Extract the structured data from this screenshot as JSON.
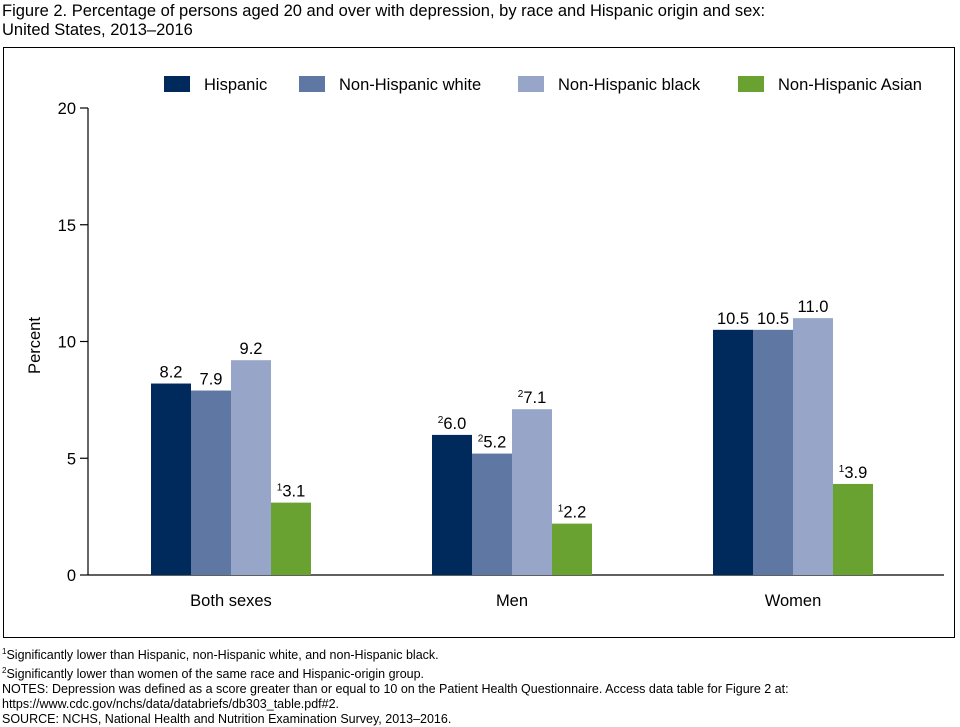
{
  "figure": {
    "title_line1": "Figure 2. Percentage of persons aged 20 and over with depression, by race and Hispanic origin and sex:",
    "title_line2": "United States, 2013–2016"
  },
  "chart_data": {
    "type": "bar",
    "ylabel": "Percent",
    "xlabel": "",
    "ylim": [
      0,
      20
    ],
    "yticks": [
      0,
      5,
      10,
      15,
      20
    ],
    "grid": false,
    "legend_position": "top",
    "categories": [
      "Both sexes",
      "Men",
      "Women"
    ],
    "series": [
      {
        "name": "Hispanic",
        "color": "#002a5c",
        "values": [
          8.2,
          6.0,
          10.5
        ],
        "labels": [
          "8.2",
          "6.0",
          "10.5"
        ],
        "footnotes": [
          "",
          "2",
          ""
        ]
      },
      {
        "name": "Non-Hispanic white",
        "color": "#5f77a3",
        "values": [
          7.9,
          5.2,
          10.5
        ],
        "labels": [
          "7.9",
          "5.2",
          "10.5"
        ],
        "footnotes": [
          "",
          "2",
          ""
        ]
      },
      {
        "name": "Non-Hispanic black",
        "color": "#97a6c8",
        "values": [
          9.2,
          7.1,
          11.0
        ],
        "labels": [
          "9.2",
          "7.1",
          "11.0"
        ],
        "footnotes": [
          "",
          "2",
          ""
        ]
      },
      {
        "name": "Non-Hispanic Asian",
        "color": "#6aa232",
        "values": [
          3.1,
          2.2,
          3.9
        ],
        "labels": [
          "3.1",
          "2.2",
          "3.9"
        ],
        "footnotes": [
          "1",
          "1",
          "1"
        ]
      }
    ]
  },
  "notes": {
    "footnote1": "Significantly lower than Hispanic, non-Hispanic white, and non-Hispanic black.",
    "footnote1_mark": "1",
    "footnote2": "Significantly lower than women of the same race and Hispanic-origin group.",
    "footnote2_mark": "2",
    "notes_line1": "NOTES: Depression was defined as a score greater than or equal to 10 on the Patient Health Questionnaire. Access data table for Figure 2 at:",
    "notes_line2": "https://www.cdc.gov/nchs/data/databriefs/db303_table.pdf#2.",
    "source": "SOURCE: NCHS, National Health and Nutrition Examination Survey, 2013–2016."
  }
}
